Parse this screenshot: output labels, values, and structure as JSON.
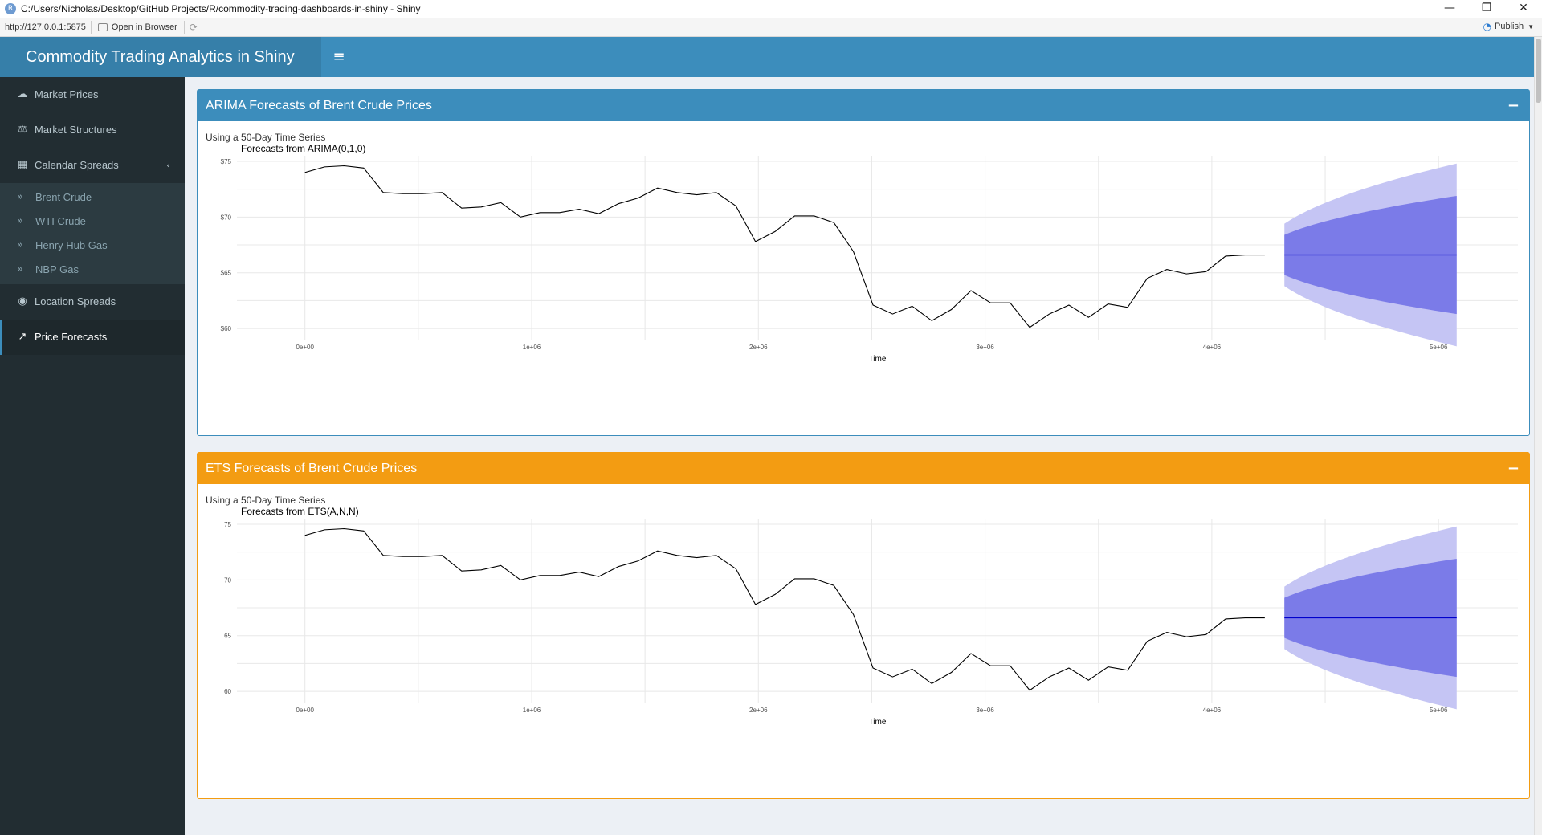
{
  "window": {
    "title": "C:/Users/Nicholas/Desktop/GitHub Projects/R/commodity-trading-dashboards-in-shiny - Shiny",
    "minimize": "—",
    "restore": "❐",
    "close": "✕"
  },
  "toolbar": {
    "url": "http://127.0.0.1:5875",
    "open_in_browser": "Open in Browser",
    "publish": "Publish"
  },
  "header": {
    "title": "Commodity Trading Analytics in Shiny",
    "toggle_icon": "≡"
  },
  "sidebar": {
    "items": [
      {
        "label": "Market Prices",
        "icon": "☁"
      },
      {
        "label": "Market Structures",
        "icon": "⚖"
      },
      {
        "label": "Calendar Spreads",
        "icon": "▦"
      },
      {
        "label": "Location Spreads",
        "icon": "◉"
      },
      {
        "label": "Price Forecasts",
        "icon": "↗"
      }
    ],
    "calendar_caret": "‹",
    "subitems": [
      {
        "label": "Brent Crude",
        "icon": "»"
      },
      {
        "label": "WTI Crude",
        "icon": "»"
      },
      {
        "label": "Henry Hub Gas",
        "icon": "»"
      },
      {
        "label": "NBP Gas",
        "icon": "»"
      }
    ]
  },
  "colors": {
    "primary": "#3c8dbc",
    "warning": "#f39c12",
    "sidebar_bg": "#222d32",
    "pi80": "#7b7be8",
    "pi95": "#c5c5f4",
    "forecast_line": "#0000cc"
  },
  "boxes": {
    "arima": {
      "title": "ARIMA Forecasts of Brent Crude Prices",
      "collapse": "−",
      "subtitle": "Using a 50-Day Time Series"
    },
    "ets": {
      "title": "ETS Forecasts of Brent Crude Prices",
      "collapse": "−",
      "subtitle": "Using a 50-Day Time Series"
    }
  },
  "chart_data": [
    {
      "type": "line",
      "title": "Forecasts from ARIMA(0,1,0)",
      "xlabel": "Time",
      "ylabel": "",
      "x_ticks": [
        0,
        1000000,
        2000000,
        3000000,
        4000000,
        5000000
      ],
      "x_tick_labels": [
        "0e+00",
        "1e+06",
        "2e+06",
        "3e+06",
        "4e+06",
        "5e+06"
      ],
      "y_ticks": [
        60,
        65,
        70,
        75
      ],
      "y_tick_labels": [
        "$60",
        "$65",
        "$70",
        "$75"
      ],
      "xlim": [
        -300000,
        5350000
      ],
      "ylim": [
        59.0,
        75.5
      ],
      "grid": true,
      "history": {
        "x": [
          0,
          86400,
          172800,
          259200,
          345600,
          432000,
          518400,
          604800,
          691200,
          777600,
          864000,
          950400,
          1036800,
          1123200,
          1209600,
          1296000,
          1382400,
          1468800,
          1555200,
          1641600,
          1728000,
          1814400,
          1900800,
          1987200,
          2073600,
          2160000,
          2246400,
          2332800,
          2419200,
          2505600,
          2592000,
          2678400,
          2764800,
          2851200,
          2937600,
          3024000,
          3110400,
          3196800,
          3283200,
          3369600,
          3456000,
          3542400,
          3628800,
          3715200,
          3801600,
          3888000,
          3974400,
          4060800,
          4147200,
          4233600
        ],
        "y": [
          74.0,
          74.5,
          74.6,
          74.4,
          72.2,
          72.1,
          72.1,
          72.2,
          70.8,
          70.9,
          71.3,
          70.0,
          70.4,
          70.4,
          70.7,
          70.3,
          71.2,
          71.7,
          72.6,
          72.2,
          72.0,
          72.2,
          71.0,
          67.8,
          68.7,
          70.1,
          70.1,
          69.5,
          66.9,
          62.1,
          61.3,
          62.0,
          60.7,
          61.7,
          63.4,
          62.3,
          62.3,
          60.1,
          61.3,
          62.1,
          61.0,
          62.2,
          61.9,
          64.5,
          65.3,
          64.9,
          65.1,
          66.5,
          66.6,
          66.6
        ]
      },
      "forecast": {
        "x": [
          4320000,
          5080000
        ],
        "point": [
          66.6,
          66.6
        ],
        "lo80": [
          64.8,
          61.3
        ],
        "hi80": [
          68.4,
          71.9
        ],
        "lo95": [
          63.8,
          58.4
        ],
        "hi95": [
          69.4,
          74.8
        ]
      }
    },
    {
      "type": "line",
      "title": "Forecasts from ETS(A,N,N)",
      "xlabel": "Time",
      "ylabel": "",
      "x_ticks": [
        0,
        1000000,
        2000000,
        3000000,
        4000000,
        5000000
      ],
      "x_tick_labels": [
        "0e+00",
        "1e+06",
        "2e+06",
        "3e+06",
        "4e+06",
        "5e+06"
      ],
      "y_ticks": [
        60,
        65,
        70,
        75
      ],
      "y_tick_labels": [
        "60",
        "65",
        "70",
        "75"
      ],
      "xlim": [
        -300000,
        5350000
      ],
      "ylim": [
        59.0,
        75.5
      ],
      "grid": true,
      "history": {
        "x": [
          0,
          86400,
          172800,
          259200,
          345600,
          432000,
          518400,
          604800,
          691200,
          777600,
          864000,
          950400,
          1036800,
          1123200,
          1209600,
          1296000,
          1382400,
          1468800,
          1555200,
          1641600,
          1728000,
          1814400,
          1900800,
          1987200,
          2073600,
          2160000,
          2246400,
          2332800,
          2419200,
          2505600,
          2592000,
          2678400,
          2764800,
          2851200,
          2937600,
          3024000,
          3110400,
          3196800,
          3283200,
          3369600,
          3456000,
          3542400,
          3628800,
          3715200,
          3801600,
          3888000,
          3974400,
          4060800,
          4147200,
          4233600
        ],
        "y": [
          74.0,
          74.5,
          74.6,
          74.4,
          72.2,
          72.1,
          72.1,
          72.2,
          70.8,
          70.9,
          71.3,
          70.0,
          70.4,
          70.4,
          70.7,
          70.3,
          71.2,
          71.7,
          72.6,
          72.2,
          72.0,
          72.2,
          71.0,
          67.8,
          68.7,
          70.1,
          70.1,
          69.5,
          66.9,
          62.1,
          61.3,
          62.0,
          60.7,
          61.7,
          63.4,
          62.3,
          62.3,
          60.1,
          61.3,
          62.1,
          61.0,
          62.2,
          61.9,
          64.5,
          65.3,
          64.9,
          65.1,
          66.5,
          66.6,
          66.6
        ]
      },
      "forecast": {
        "x": [
          4320000,
          5080000
        ],
        "point": [
          66.6,
          66.6
        ],
        "lo80": [
          64.8,
          61.3
        ],
        "hi80": [
          68.4,
          71.9
        ],
        "lo95": [
          63.8,
          58.4
        ],
        "hi95": [
          69.4,
          74.8
        ]
      }
    }
  ]
}
